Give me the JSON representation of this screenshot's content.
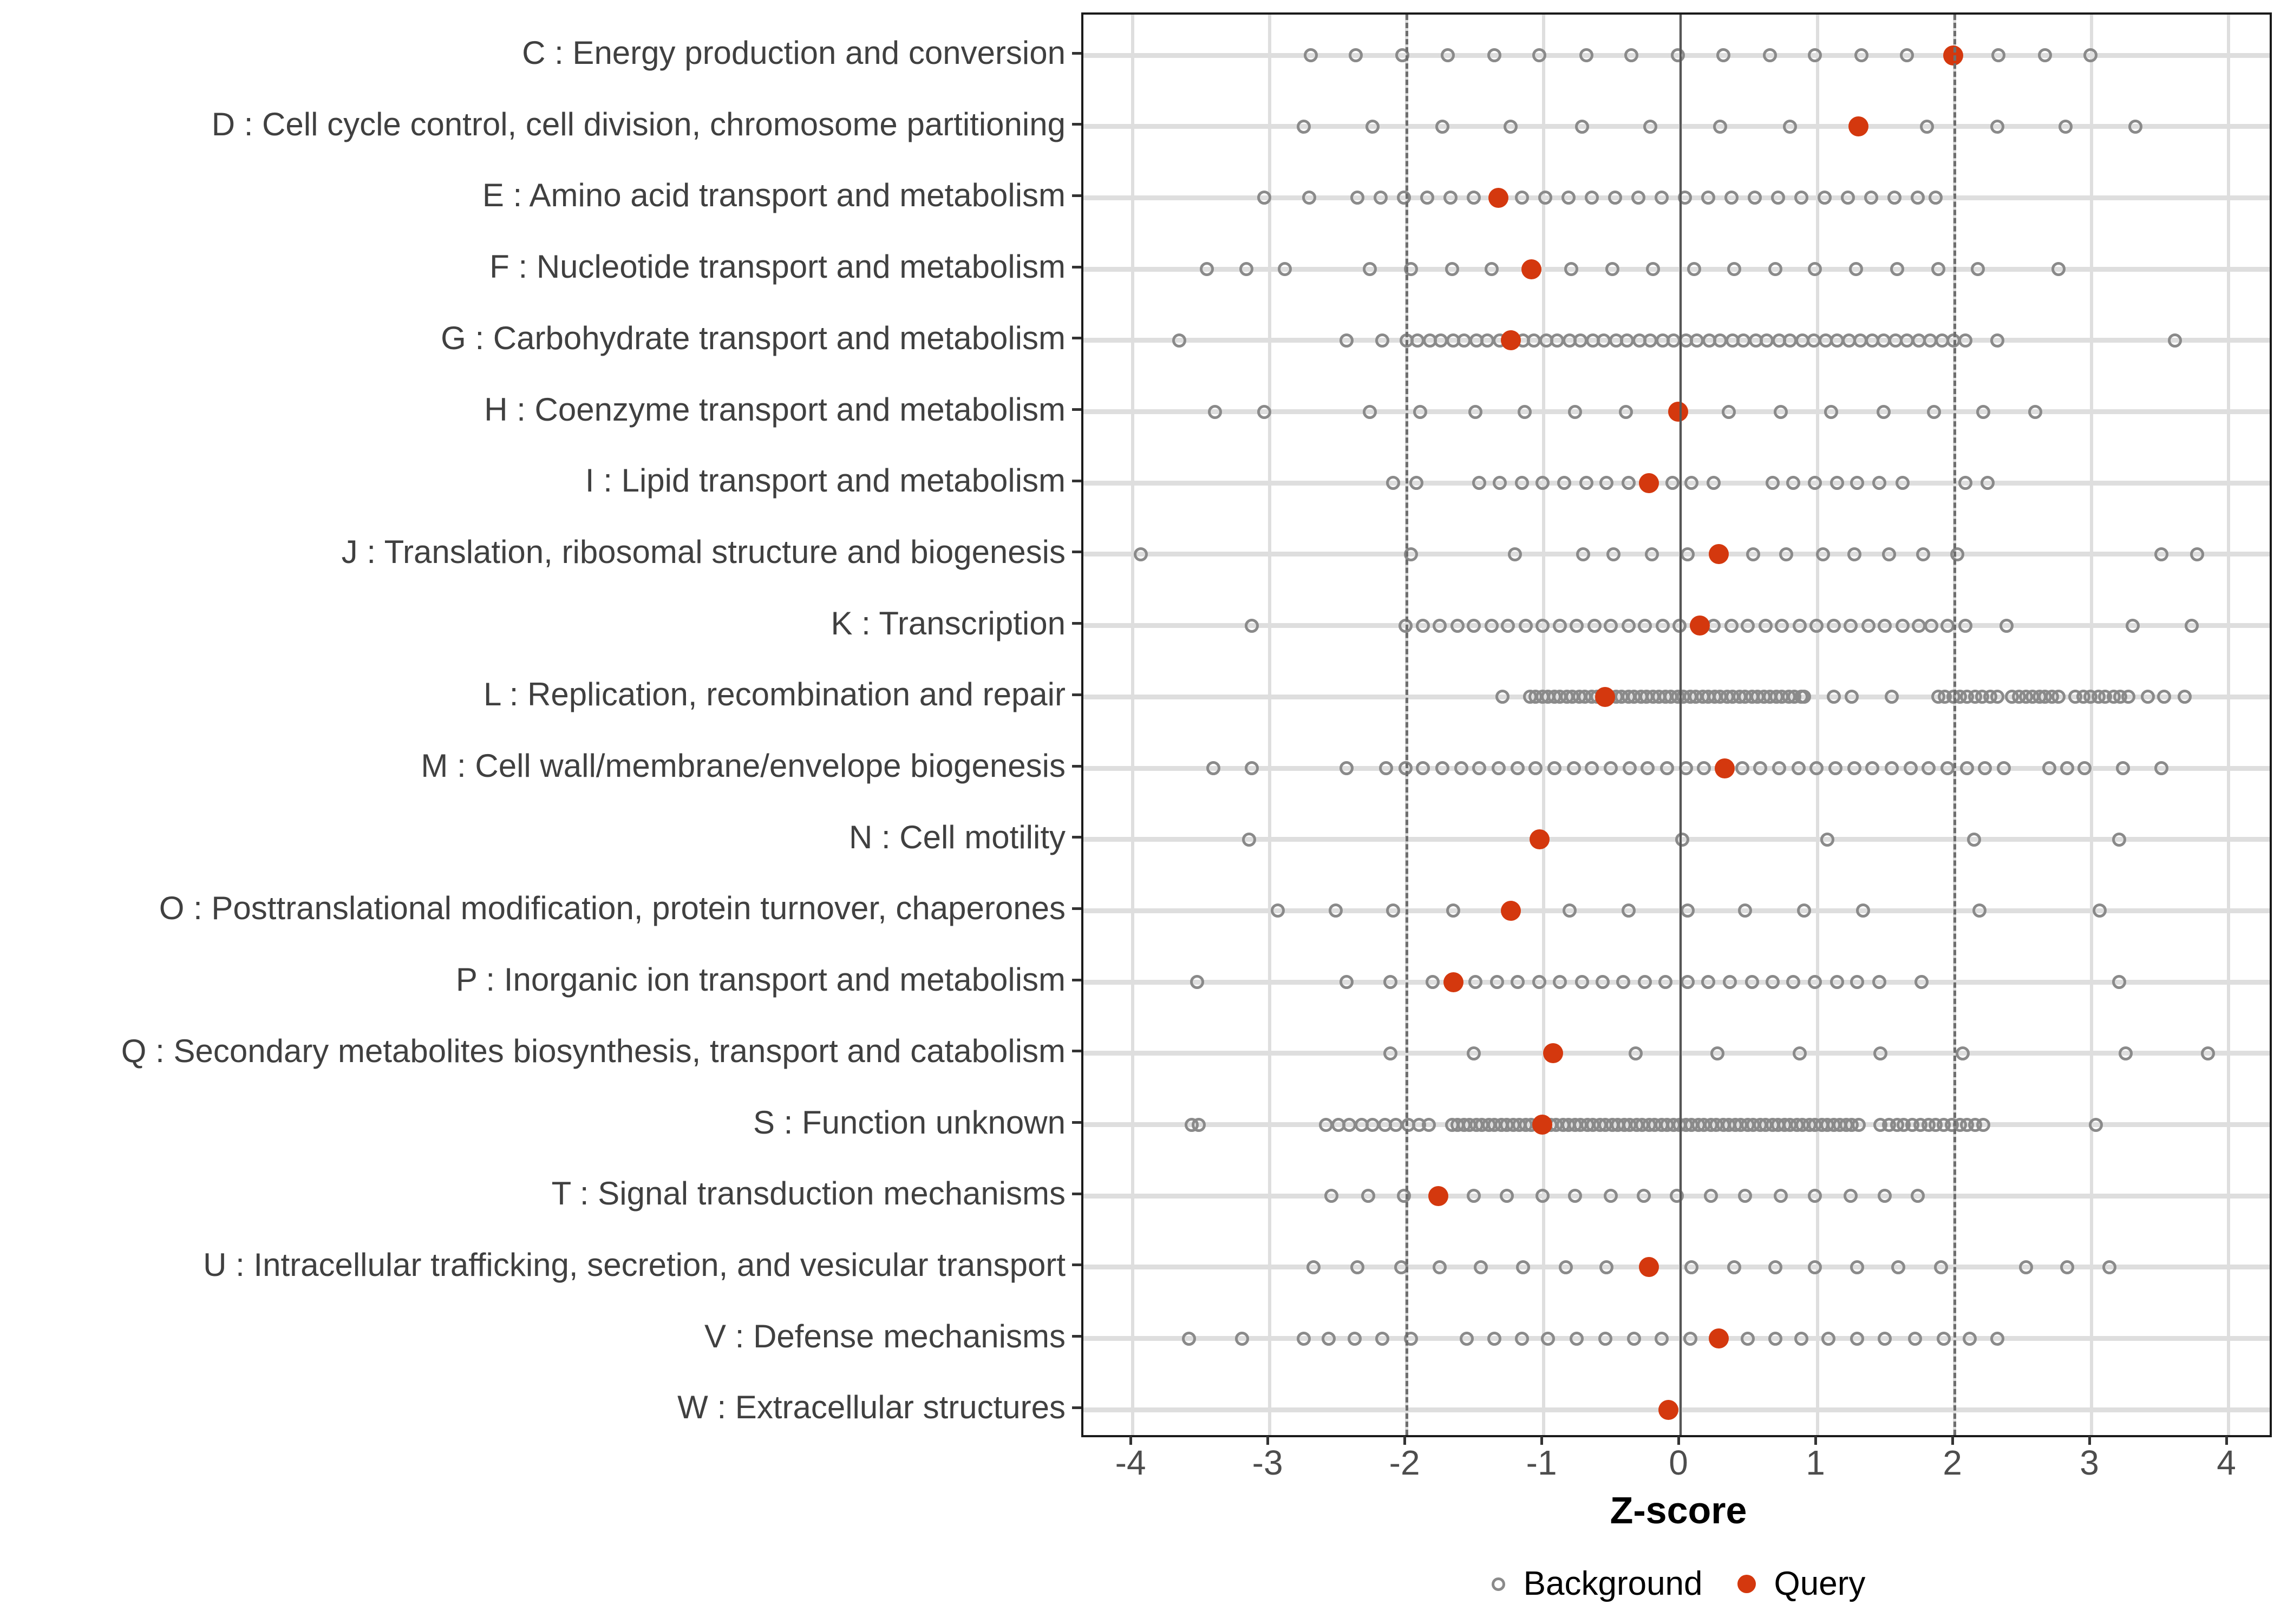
{
  "chart": {
    "xlabel": "Z-score",
    "x_ticks": [
      "-4",
      "-3",
      "-2",
      "-1",
      "0",
      "1",
      "2",
      "3",
      "4"
    ],
    "legend": [
      {
        "label": "Background",
        "type": "open-circle"
      },
      {
        "label": "Query",
        "type": "filled-circle"
      }
    ],
    "colors": {
      "query": "#d4380e",
      "background_stroke": "#8a8a8a",
      "grid": "#dedede",
      "dashed_ref_line": "#6e6e6e",
      "zero_line": "#565656",
      "axis_text": "#4d4d4d",
      "category_text": "#404040",
      "panel_border": "#1a1a1a"
    }
  },
  "chart_data": {
    "type": "scatter",
    "title": "",
    "xlabel": "Z-score",
    "ylabel": "",
    "x_range": [
      -4.36,
      4.3
    ],
    "x_tick_values": [
      -4,
      -3,
      -2,
      -1,
      0,
      1,
      2,
      3,
      4
    ],
    "reference_lines": {
      "solid": [
        0
      ],
      "dashed": [
        -2,
        2
      ]
    },
    "legend_position": "bottom",
    "grid": true,
    "categories": [
      "C : Energy production and conversion",
      "D : Cell cycle control, cell division, chromosome partitioning",
      "E : Amino acid transport and metabolism",
      "F : Nucleotide transport and metabolism",
      "G : Carbohydrate transport and metabolism",
      "H : Coenzyme transport and metabolism",
      "I : Lipid transport and metabolism",
      "J : Translation, ribosomal structure and biogenesis",
      "K : Transcription",
      "L : Replication, recombination and repair",
      "M : Cell wall/membrane/envelope biogenesis",
      "N : Cell motility",
      "O : Posttranslational modification, protein turnover, chaperones",
      "P : Inorganic ion transport and metabolism",
      "Q : Secondary metabolites biosynthesis, transport and catabolism",
      "S : Function unknown",
      "T : Signal transduction mechanisms",
      "U : Intracellular trafficking, secretion, and vesicular transport",
      "V : Defense mechanisms",
      "W : Extracellular structures"
    ],
    "series": [
      {
        "name": "Background",
        "points_by_category": [
          [
            -2.7,
            -2.37,
            -2.03,
            -1.7,
            -1.36,
            -1.03,
            -0.69,
            -0.36,
            -0.02,
            0.31,
            0.65,
            0.98,
            1.32,
            1.65,
            1.99,
            2.32,
            2.66,
            2.99
          ],
          [
            -2.75,
            -2.25,
            -1.74,
            -1.24,
            -0.72,
            -0.22,
            0.29,
            0.8,
            1.3,
            1.8,
            2.31,
            2.81,
            3.32
          ],
          [
            -3.04,
            -2.71,
            -2.36,
            -2.19,
            -2.02,
            -1.85,
            -1.68,
            -1.51,
            -1.33,
            -1.16,
            -0.99,
            -0.82,
            -0.65,
            -0.48,
            -0.31,
            -0.14,
            0.03,
            0.2,
            0.37,
            0.54,
            0.71,
            0.88,
            1.05,
            1.22,
            1.39,
            1.56,
            1.73,
            1.86
          ],
          [
            -3.46,
            -3.17,
            -2.89,
            -2.27,
            -1.97,
            -1.67,
            -1.38,
            -1.09,
            -0.8,
            -0.5,
            -0.2,
            0.1,
            0.39,
            0.69,
            0.98,
            1.28,
            1.58,
            1.88,
            2.17,
            2.76
          ],
          [
            -3.66,
            -2.44,
            -2.18,
            -2.0,
            -1.92,
            -1.83,
            -1.75,
            -1.66,
            -1.58,
            -1.49,
            -1.41,
            -1.32,
            -1.24,
            -1.15,
            -1.07,
            -0.98,
            -0.9,
            -0.81,
            -0.73,
            -0.64,
            -0.56,
            -0.47,
            -0.39,
            -0.3,
            -0.22,
            -0.13,
            -0.05,
            0.04,
            0.12,
            0.21,
            0.29,
            0.38,
            0.46,
            0.55,
            0.63,
            0.72,
            0.8,
            0.89,
            0.97,
            1.06,
            1.14,
            1.23,
            1.31,
            1.4,
            1.48,
            1.57,
            1.65,
            1.74,
            1.82,
            1.91,
            1.99,
            2.08,
            2.31,
            3.61
          ],
          [
            -3.4,
            -3.04,
            -2.27,
            -1.9,
            -1.5,
            -1.14,
            -0.77,
            -0.4,
            -0.02,
            0.35,
            0.73,
            1.1,
            1.48,
            1.85,
            2.21,
            2.59
          ],
          [
            -2.1,
            -1.93,
            -1.47,
            -1.32,
            -1.16,
            -1.01,
            -0.85,
            -0.69,
            -0.54,
            -0.38,
            -0.22,
            -0.06,
            0.08,
            0.24,
            0.67,
            0.82,
            0.98,
            1.14,
            1.29,
            1.45,
            1.62,
            2.08,
            2.24
          ],
          [
            -3.94,
            -1.97,
            -1.21,
            -0.71,
            -0.49,
            -0.21,
            0.05,
            0.28,
            0.53,
            0.77,
            1.04,
            1.27,
            1.52,
            1.77,
            2.02,
            3.51,
            3.77
          ],
          [
            -3.13,
            -2.01,
            -1.88,
            -1.76,
            -1.63,
            -1.51,
            -1.38,
            -1.26,
            -1.13,
            -1.01,
            -0.88,
            -0.76,
            -0.63,
            -0.51,
            -0.38,
            -0.26,
            -0.13,
            -0.01,
            0.12,
            0.24,
            0.37,
            0.49,
            0.62,
            0.74,
            0.87,
            0.99,
            1.12,
            1.24,
            1.37,
            1.49,
            1.62,
            1.74,
            1.83,
            1.95,
            2.08,
            2.38,
            3.3,
            3.73
          ],
          [
            -1.3,
            -1.1,
            -1.06,
            -1.01,
            -0.97,
            -0.92,
            -0.88,
            -0.83,
            -0.79,
            -0.74,
            -0.7,
            -0.65,
            -0.61,
            -0.56,
            -0.52,
            -0.47,
            -0.43,
            -0.38,
            -0.34,
            -0.29,
            -0.25,
            -0.2,
            -0.16,
            -0.11,
            -0.07,
            -0.02,
            0.02,
            0.07,
            0.11,
            0.16,
            0.2,
            0.25,
            0.29,
            0.34,
            0.38,
            0.43,
            0.47,
            0.52,
            0.56,
            0.61,
            0.65,
            0.7,
            0.74,
            0.79,
            0.83,
            0.88,
            0.9,
            1.12,
            1.25,
            1.54,
            1.88,
            1.93,
            1.99,
            2.04,
            2.09,
            2.15,
            2.2,
            2.26,
            2.31,
            2.42,
            2.47,
            2.52,
            2.57,
            2.62,
            2.66,
            2.71,
            2.76,
            2.88,
            2.94,
            2.99,
            3.05,
            3.1,
            3.16,
            3.21,
            3.27,
            3.41,
            3.53,
            3.68
          ],
          [
            -3.41,
            -3.13,
            -2.44,
            -2.15,
            -2.01,
            -1.88,
            -1.74,
            -1.6,
            -1.47,
            -1.33,
            -1.19,
            -1.06,
            -0.92,
            -0.78,
            -0.65,
            -0.51,
            -0.37,
            -0.24,
            -0.1,
            0.04,
            0.17,
            0.31,
            0.45,
            0.58,
            0.72,
            0.86,
            0.99,
            1.13,
            1.27,
            1.4,
            1.54,
            1.68,
            1.81,
            1.95,
            2.09,
            2.22,
            2.36,
            2.69,
            2.82,
            2.95,
            3.23,
            3.51
          ],
          [
            -3.15,
            0.01,
            1.07,
            2.14,
            3.2
          ],
          [
            -2.94,
            -2.52,
            -2.1,
            -1.66,
            -1.24,
            -0.81,
            -0.38,
            0.05,
            0.47,
            0.9,
            1.33,
            2.18,
            3.06
          ],
          [
            -3.53,
            -2.44,
            -2.12,
            -1.81,
            -1.5,
            -1.34,
            -1.19,
            -1.03,
            -0.88,
            -0.72,
            -0.57,
            -0.42,
            -0.26,
            -0.11,
            0.05,
            0.2,
            0.36,
            0.52,
            0.67,
            0.82,
            0.98,
            1.14,
            1.29,
            1.45,
            1.76,
            3.2
          ],
          [
            -2.12,
            -1.51,
            -0.33,
            0.27,
            0.87,
            1.46,
            2.06,
            3.25,
            3.85
          ],
          [
            -3.57,
            -3.52,
            -2.59,
            -2.5,
            -2.42,
            -2.33,
            -2.25,
            -2.16,
            -2.08,
            -1.99,
            -1.91,
            -1.84,
            -1.67,
            -1.63,
            -1.58,
            -1.54,
            -1.49,
            -1.45,
            -1.4,
            -1.36,
            -1.31,
            -1.27,
            -1.22,
            -1.18,
            -1.13,
            -1.09,
            -1.04,
            -1.0,
            -0.95,
            -0.91,
            -0.86,
            -0.82,
            -0.77,
            -0.73,
            -0.68,
            -0.64,
            -0.59,
            -0.55,
            -0.5,
            -0.46,
            -0.41,
            -0.37,
            -0.32,
            -0.28,
            -0.23,
            -0.19,
            -0.14,
            -0.1,
            -0.05,
            -0.01,
            0.04,
            0.08,
            0.13,
            0.17,
            0.22,
            0.26,
            0.31,
            0.35,
            0.4,
            0.44,
            0.49,
            0.53,
            0.58,
            0.62,
            0.67,
            0.71,
            0.76,
            0.8,
            0.85,
            0.89,
            0.94,
            0.98,
            1.03,
            1.07,
            1.12,
            1.16,
            1.21,
            1.25,
            1.3,
            1.46,
            1.52,
            1.58,
            1.63,
            1.69,
            1.75,
            1.81,
            1.86,
            1.92,
            1.98,
            2.04,
            2.09,
            2.15,
            2.21,
            3.03
          ],
          [
            -2.55,
            -2.28,
            -2.02,
            -1.51,
            -1.27,
            -1.01,
            -0.77,
            -0.51,
            -0.27,
            -0.03,
            0.22,
            0.47,
            0.73,
            0.98,
            1.24,
            1.49,
            1.73
          ],
          [
            -2.68,
            -2.36,
            -2.04,
            -1.76,
            -1.46,
            -1.15,
            -0.84,
            -0.54,
            -0.23,
            0.08,
            0.39,
            0.69,
            0.98,
            1.29,
            1.59,
            1.9,
            2.52,
            2.82,
            3.13
          ],
          [
            -3.59,
            -3.2,
            -2.75,
            -2.57,
            -2.38,
            -2.18,
            -1.97,
            -1.56,
            -1.36,
            -1.16,
            -0.97,
            -0.76,
            -0.55,
            -0.34,
            -0.14,
            0.07,
            0.28,
            0.49,
            0.69,
            0.88,
            1.08,
            1.29,
            1.49,
            1.71,
            1.92,
            2.11,
            2.31
          ],
          []
        ]
      },
      {
        "name": "Query",
        "values": [
          1.99,
          1.3,
          -1.33,
          -1.09,
          -1.24,
          -0.02,
          -0.23,
          0.28,
          0.14,
          -0.55,
          0.32,
          -1.03,
          -1.24,
          -1.66,
          -0.93,
          -1.01,
          -1.77,
          -0.23,
          0.28,
          -0.09
        ]
      }
    ]
  }
}
